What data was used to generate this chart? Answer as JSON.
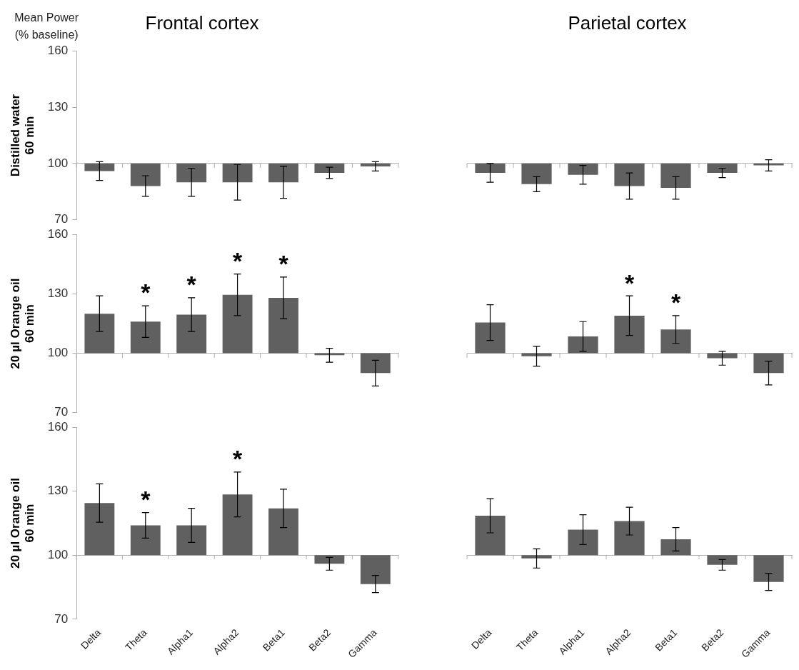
{
  "chart_data": [
    {
      "type": "bar",
      "title": "Frontal cortex",
      "ylabel": "Distilled water\n60 min",
      "annotations": [
        "Mean Power\n(% baseline)"
      ],
      "categories": [
        "Delta",
        "Theta",
        "Alpha1",
        "Alpha2",
        "Beta1",
        "Beta2",
        "Gamma"
      ],
      "base": [
        100,
        100,
        100,
        100,
        100,
        100,
        100
      ],
      "values": [
        -4,
        -12,
        -10,
        -10,
        -10,
        -5,
        -1.5
      ],
      "errors": [
        5,
        5.5,
        7.5,
        9.5,
        8.5,
        3,
        2.5
      ],
      "color": "#606060",
      "ylim": [
        70,
        160
      ],
      "yticks": [
        70,
        100,
        130,
        160
      ],
      "tick_labels": "y"
    },
    {
      "type": "bar",
      "title": "Parietal cortex",
      "categories": [
        "Delta",
        "Theta",
        "Alpha1",
        "Alpha2",
        "Beta1",
        "Beta2",
        "Gamma"
      ],
      "base": [
        100,
        100,
        100,
        100,
        100,
        100,
        100
      ],
      "values": [
        -5,
        -11,
        -6,
        -12,
        -13,
        -5,
        -1
      ],
      "errors": [
        5,
        4,
        5,
        7,
        6,
        2.5,
        3
      ],
      "color": "#606060",
      "ylim": [
        70,
        160
      ],
      "yticks": [
        70,
        100,
        130,
        160
      ],
      "tick_labels": false
    },
    {
      "type": "bar",
      "ylabel": "20 µl Orange oil\n60 min",
      "categories": [
        "Delta",
        "Theta",
        "Alpha1",
        "Alpha2",
        "Beta1",
        "Beta2",
        "Gamma"
      ],
      "base": [
        100,
        100,
        100,
        100,
        100,
        100,
        100
      ],
      "values": [
        20,
        16,
        19.5,
        29.5,
        28,
        -1,
        -10
      ],
      "errors": [
        9,
        8,
        8.5,
        10.5,
        10.5,
        3.5,
        6.5
      ],
      "annotations": [
        {
          "text": "*",
          "x": "Theta",
          "y": 116
        },
        {
          "text": "*",
          "x": "Alpha1",
          "y": 119.5
        },
        {
          "text": "*",
          "x": "Alpha2",
          "y": 129.5
        },
        {
          "text": "*",
          "x": "Beta1",
          "y": 128
        }
      ],
      "color": "#606060",
      "ylim": [
        70,
        160
      ],
      "yticks": [
        70,
        100,
        130,
        160
      ],
      "tick_labels": "y"
    },
    {
      "type": "bar",
      "categories": [
        "Delta",
        "Theta",
        "Alpha1",
        "Alpha2",
        "Beta1",
        "Beta2",
        "Gamma"
      ],
      "base": [
        100,
        100,
        100,
        100,
        100,
        100,
        100
      ],
      "values": [
        15.5,
        -1.5,
        8.5,
        19,
        12,
        -2.5,
        -10
      ],
      "errors": [
        9,
        5,
        7.5,
        10,
        7,
        3.5,
        6
      ],
      "annotations": [
        {
          "text": "*",
          "x": "Alpha2",
          "y": 119
        },
        {
          "text": "*",
          "x": "Beta1",
          "y": 112
        }
      ],
      "color": "#606060",
      "ylim": [
        70,
        160
      ],
      "yticks": [
        70,
        100,
        130,
        160
      ],
      "tick_labels": false
    },
    {
      "type": "bar",
      "ylabel": "20 µl Orange oil\n60 min",
      "categories": [
        "Delta",
        "Theta",
        "Alpha1",
        "Alpha2",
        "Beta1",
        "Beta2",
        "Gamma"
      ],
      "base": [
        100,
        100,
        100,
        100,
        100,
        100,
        100
      ],
      "values": [
        24.5,
        14,
        14,
        28.5,
        22,
        -4,
        -13.5
      ],
      "errors": [
        9,
        6,
        8,
        10.5,
        9,
        3,
        4
      ],
      "annotations": [
        {
          "text": "*",
          "x": "Theta",
          "y": 114
        },
        {
          "text": "*",
          "x": "Alpha2",
          "y": 128.5
        }
      ],
      "color": "#606060",
      "ylim": [
        70,
        160
      ],
      "yticks": [
        70,
        100,
        130,
        160
      ]
    },
    {
      "type": "bar",
      "categories": [
        "Delta",
        "Theta",
        "Alpha1",
        "Alpha2",
        "Beta1",
        "Beta2",
        "Gamma"
      ],
      "base": [
        100,
        100,
        100,
        100,
        100,
        100,
        100
      ],
      "values": [
        18.5,
        -1.5,
        12,
        16,
        7.5,
        -4.5,
        -12.5
      ],
      "errors": [
        8,
        4.5,
        7,
        6.5,
        5.5,
        2.5,
        4
      ],
      "color": "#606060",
      "ylim": [
        70,
        160
      ],
      "yticks": [
        70,
        100,
        130,
        160
      ],
      "tick_labels": "x"
    }
  ]
}
